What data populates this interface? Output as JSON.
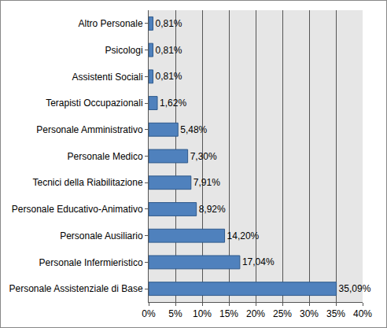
{
  "chart_data": {
    "type": "bar",
    "orientation": "horizontal",
    "categories": [
      "Altro Personale",
      "Psicologi",
      "Assistenti Sociali",
      "Terapisti Occupazionali",
      "Personale Amministrativo",
      "Personale Medico",
      "Tecnici della Riabilitazione",
      "Personale Educativo-Animativo",
      "Personale Ausiliario",
      "Personale Infermieristico",
      "Personale Assistenziale di Base"
    ],
    "values": [
      0.81,
      0.81,
      0.81,
      1.62,
      5.48,
      7.3,
      7.91,
      8.92,
      14.2,
      17.04,
      35.09
    ],
    "value_labels": [
      "0,81%",
      "0,81%",
      "0,81%",
      "1,62%",
      "5,48%",
      "7,30%",
      "7,91%",
      "8,92%",
      "14,20%",
      "17,04%",
      "35,09%"
    ],
    "color": "#4f81bd",
    "data_labels": true,
    "grid": true,
    "xlim": [
      0,
      40
    ],
    "xticks": [
      {
        "value": 0,
        "label": "0%"
      },
      {
        "value": 5,
        "label": "5%"
      },
      {
        "value": 10,
        "label": "10%"
      },
      {
        "value": 15,
        "label": "15%"
      },
      {
        "value": 20,
        "label": "20%"
      },
      {
        "value": 25,
        "label": "25%"
      },
      {
        "value": 30,
        "label": "30%"
      },
      {
        "value": 35,
        "label": "35%"
      },
      {
        "value": 40,
        "label": "40%"
      }
    ]
  }
}
